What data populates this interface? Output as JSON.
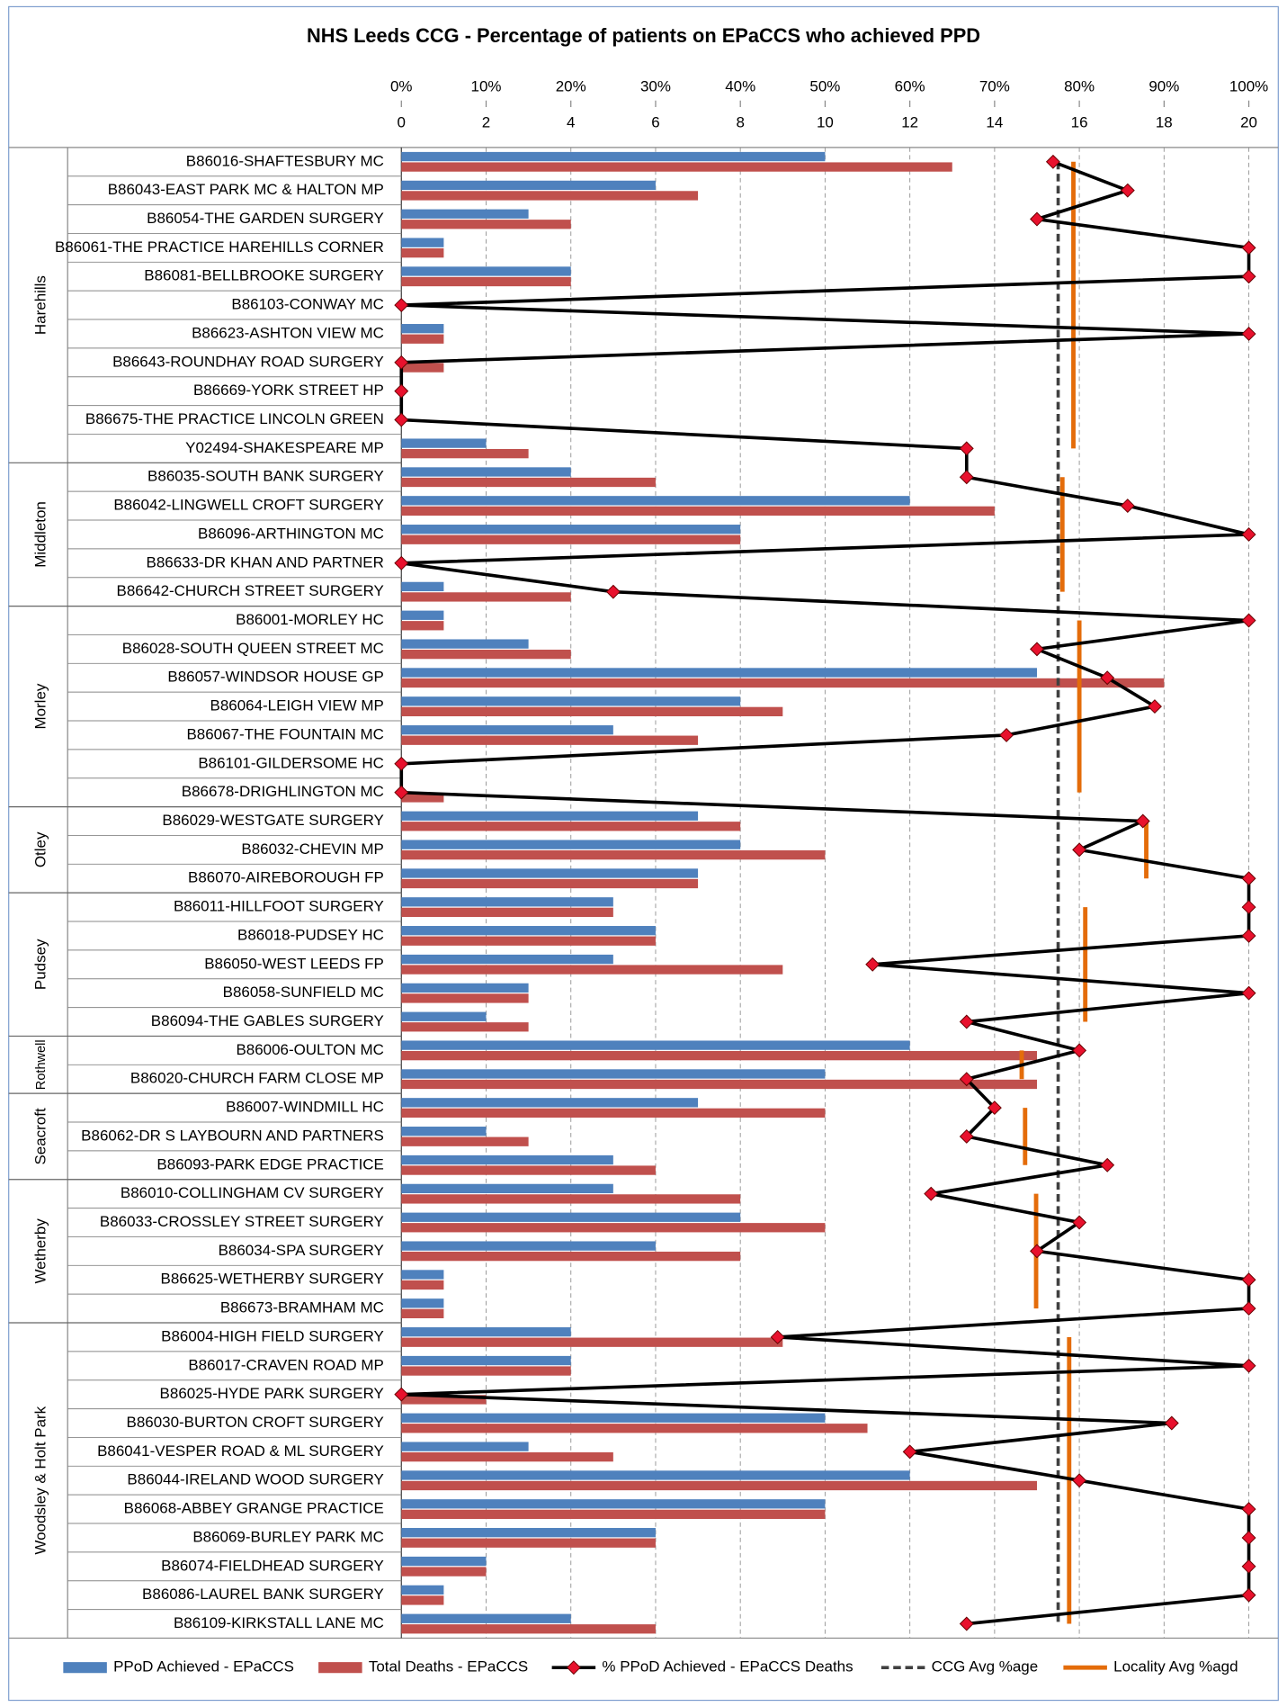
{
  "chart_data": {
    "type": "bar_line",
    "title": "NHS Leeds CCG - Percentage of patients on EPaCCS who achieved PPD",
    "categories": [
      "B86016-SHAFTESBURY MC",
      "B86043-EAST PARK MC & HALTON MP",
      "B86054-THE GARDEN SURGERY",
      "B86061-THE PRACTICE HAREHILLS CORNER",
      "B86081-BELLBROOKE SURGERY",
      "B86103-CONWAY MC",
      "B86623-ASHTON VIEW MC",
      "B86643-ROUNDHAY ROAD SURGERY",
      "B86669-YORK STREET HP",
      "B86675-THE PRACTICE LINCOLN GREEN",
      "Y02494-SHAKESPEARE MP",
      "B86035-SOUTH BANK SURGERY",
      "B86042-LINGWELL CROFT SURGERY",
      "B86096-ARTHINGTON MC",
      "B86633-DR KHAN AND PARTNER",
      "B86642-CHURCH STREET SURGERY",
      "B86001-MORLEY HC",
      "B86028-SOUTH QUEEN STREET MC",
      "B86057-WINDSOR HOUSE GP",
      "B86064-LEIGH VIEW MP",
      "B86067-THE FOUNTAIN MC",
      "B86101-GILDERSOME HC",
      "B86678-DRIGHLINGTON MC",
      "B86029-WESTGATE SURGERY",
      "B86032-CHEVIN MP",
      "B86070-AIREBOROUGH FP",
      "B86011-HILLFOOT SURGERY",
      "B86018-PUDSEY HC",
      "B86050-WEST LEEDS FP",
      "B86058-SUNFIELD MC",
      "B86094-THE GABLES SURGERY",
      "B86006-OULTON MC",
      "B86020-CHURCH FARM CLOSE MP",
      "B86007-WINDMILL HC",
      "B86062-DR S LAYBOURN AND PARTNERS",
      "B86093-PARK EDGE PRACTICE",
      "B86010-COLLINGHAM CV SURGERY",
      "B86033-CROSSLEY STREET SURGERY",
      "B86034-SPA SURGERY",
      "B86625-WETHERBY SURGERY",
      "B86673-BRAMHAM MC",
      "B86004-HIGH FIELD SURGERY",
      "B86017-CRAVEN ROAD MP",
      "B86025-HYDE PARK SURGERY",
      "B86030-BURTON CROFT SURGERY",
      "B86041-VESPER ROAD & ML SURGERY",
      "B86044-IRELAND WOOD SURGERY",
      "B86068-ABBEY GRANGE PRACTICE",
      "B86069-BURLEY PARK MC",
      "B86074-FIELDHEAD SURGERY",
      "B86086-LAUREL BANK SURGERY",
      "B86109-KIRKSTALL LANE MC"
    ],
    "category_groups": [
      "Harehills",
      "Harehills",
      "Harehills",
      "Harehills",
      "Harehills",
      "Harehills",
      "Harehills",
      "Harehills",
      "Harehills",
      "Harehills",
      "Harehills",
      "Middleton",
      "Middleton",
      "Middleton",
      "Middleton",
      "Middleton",
      "Morley",
      "Morley",
      "Morley",
      "Morley",
      "Morley",
      "Morley",
      "Morley",
      "Otley",
      "Otley",
      "Otley",
      "Pudsey",
      "Pudsey",
      "Pudsey",
      "Pudsey",
      "Pudsey",
      "Rothwell",
      "Rothwell",
      "Seacroft",
      "Seacroft",
      "Seacroft",
      "Wetherby",
      "Wetherby",
      "Wetherby",
      "Wetherby",
      "Wetherby",
      "Woodsley & Holt Park",
      "Woodsley & Holt Park",
      "Woodsley & Holt Park",
      "Woodsley & Holt Park",
      "Woodsley & Holt Park",
      "Woodsley & Holt Park",
      "Woodsley & Holt Park",
      "Woodsley & Holt Park",
      "Woodsley & Holt Park",
      "Woodsley & Holt Park",
      "Woodsley & Holt Park"
    ],
    "series": [
      {
        "name": "PPoD Achieved - EPaCCS",
        "color": "#4f81bd",
        "axis": "x2",
        "values": [
          10,
          6,
          3,
          1,
          4,
          0,
          1,
          0,
          0,
          0,
          2,
          4,
          12,
          8,
          0,
          1,
          1,
          3,
          15,
          8,
          5,
          0,
          0,
          7,
          8,
          7,
          5,
          6,
          5,
          3,
          2,
          12,
          10,
          7,
          2,
          5,
          5,
          8,
          6,
          1,
          1,
          4,
          4,
          0,
          10,
          3,
          12,
          10,
          6,
          2,
          1,
          4
        ]
      },
      {
        "name": "Total Deaths - EPaCCS",
        "color": "#c0504d",
        "axis": "x2",
        "values": [
          13,
          7,
          4,
          1,
          4,
          0,
          1,
          1,
          0,
          0,
          3,
          6,
          14,
          8,
          0,
          4,
          1,
          4,
          18,
          9,
          7,
          0,
          1,
          8,
          10,
          7,
          5,
          6,
          9,
          3,
          3,
          15,
          15,
          10,
          3,
          6,
          8,
          10,
          8,
          1,
          1,
          9,
          4,
          2,
          11,
          5,
          15,
          10,
          6,
          2,
          1,
          6
        ]
      },
      {
        "name": "% PPoD Achieved - EPaCCS Deaths",
        "color": "#000000",
        "marker_color": "#e8112d",
        "axis": "x",
        "values": [
          76.9,
          85.7,
          75,
          100,
          100,
          0,
          100,
          0,
          0,
          0,
          66.7,
          66.7,
          85.7,
          100,
          0,
          25,
          100,
          75,
          83.3,
          88.9,
          71.4,
          0,
          0,
          87.5,
          80,
          100,
          100,
          100,
          55.6,
          100,
          66.7,
          80,
          66.7,
          70,
          66.7,
          83.3,
          62.5,
          80,
          75,
          100,
          100,
          44.4,
          100,
          0,
          90.9,
          60,
          80,
          100,
          100,
          100,
          100,
          66.7
        ]
      },
      {
        "name": "CCG Avg %age",
        "color": "#404040",
        "axis": "x",
        "values": [
          77.5,
          77.5,
          77.5,
          77.5,
          77.5,
          77.5,
          77.5,
          77.5,
          77.5,
          77.5,
          77.5,
          77.5,
          77.5,
          77.5,
          77.5,
          77.5,
          77.5,
          77.5,
          77.5,
          77.5,
          77.5,
          77.5,
          77.5,
          77.5,
          77.5,
          77.5,
          77.5,
          77.5,
          77.5,
          77.5,
          77.5,
          77.5,
          77.5,
          77.5,
          77.5,
          77.5,
          77.5,
          77.5,
          77.5,
          77.5,
          77.5,
          77.5,
          77.5,
          77.5,
          77.5,
          77.5,
          77.5,
          77.5,
          77.5,
          77.5,
          77.5,
          77.5
        ]
      },
      {
        "name": "Locality Avg %agd",
        "color": "#e46c0a",
        "axis": "x",
        "values": [
          79.3,
          79.3,
          79.3,
          79.3,
          79.3,
          79.3,
          79.3,
          79.3,
          79.3,
          79.3,
          79.3,
          78,
          78,
          78,
          78,
          78,
          80,
          80,
          80,
          80,
          80,
          80,
          80,
          87.9,
          87.9,
          87.9,
          80.7,
          80.7,
          80.7,
          80.7,
          80.7,
          73.2,
          73.2,
          73.6,
          73.6,
          73.6,
          74.9,
          74.9,
          74.9,
          74.9,
          74.9,
          78.8,
          78.8,
          78.8,
          78.8,
          78.8,
          78.8,
          78.8,
          78.8,
          78.8,
          78.8,
          78.8
        ]
      }
    ],
    "xlim": [
      0,
      100
    ],
    "xticks": [
      {
        "value": 0,
        "label": "0%"
      },
      {
        "value": 10,
        "label": "10%"
      },
      {
        "value": 20,
        "label": "20%"
      },
      {
        "value": 30,
        "label": "30%"
      },
      {
        "value": 40,
        "label": "40%"
      },
      {
        "value": 50,
        "label": "50%"
      },
      {
        "value": 60,
        "label": "60%"
      },
      {
        "value": 70,
        "label": "70%"
      },
      {
        "value": 80,
        "label": "80%"
      },
      {
        "value": 90,
        "label": "90%"
      },
      {
        "value": 100,
        "label": "100%"
      }
    ],
    "x2lim": [
      0,
      20
    ],
    "x2ticks": [
      0,
      2,
      4,
      6,
      8,
      10,
      12,
      14,
      16,
      18,
      20
    ],
    "grid": true,
    "legend": "bottom"
  }
}
